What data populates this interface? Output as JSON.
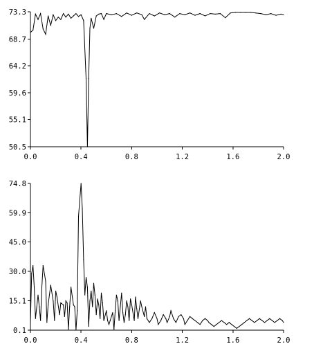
{
  "chart_data": [
    {
      "type": "line",
      "title": "",
      "xlabel": "",
      "ylabel": "",
      "xlim": [
        0.0,
        2.0
      ],
      "ylim": [
        50.5,
        73.3
      ],
      "grid": false,
      "xticks": [
        "0.0",
        "0.4",
        "0.8",
        "1.2",
        "1.6",
        "2.0"
      ],
      "yticks": [
        "73.3",
        "68.7",
        "64.2",
        "59.6",
        "55.1",
        "50.5"
      ],
      "series": [
        {
          "x": [
            0.0,
            0.02,
            0.04,
            0.06,
            0.08,
            0.1,
            0.12,
            0.14,
            0.16,
            0.18,
            0.2,
            0.22,
            0.24,
            0.26,
            0.28,
            0.3,
            0.32,
            0.34,
            0.36,
            0.38,
            0.4,
            0.42,
            0.44,
            0.45,
            0.46,
            0.47,
            0.48,
            0.5,
            0.52,
            0.54,
            0.56,
            0.58,
            0.6,
            0.64,
            0.68,
            0.72,
            0.76,
            0.8,
            0.84,
            0.88,
            0.9,
            0.94,
            0.98,
            1.02,
            1.06,
            1.1,
            1.14,
            1.18,
            1.22,
            1.26,
            1.3,
            1.34,
            1.38,
            1.42,
            1.46,
            1.5,
            1.54,
            1.58,
            1.62,
            1.66,
            1.7,
            1.74,
            1.78,
            1.82,
            1.86,
            1.9,
            1.94,
            1.98,
            2.0
          ],
          "values": [
            69.8,
            70.2,
            72.9,
            72.0,
            73.0,
            70.4,
            69.5,
            72.6,
            71.0,
            72.8,
            71.8,
            72.4,
            72.0,
            73.0,
            72.4,
            72.9,
            72.2,
            72.6,
            73.0,
            72.5,
            72.8,
            71.8,
            62.0,
            50.5,
            62.0,
            70.5,
            72.2,
            70.5,
            72.6,
            72.9,
            73.0,
            72.0,
            73.0,
            72.8,
            73.0,
            72.5,
            73.1,
            72.7,
            73.1,
            72.8,
            72.0,
            73.0,
            72.6,
            73.1,
            72.8,
            73.0,
            72.4,
            73.0,
            72.8,
            73.1,
            72.7,
            73.0,
            72.6,
            73.0,
            72.9,
            73.0,
            72.3,
            73.1,
            73.2,
            73.2,
            73.2,
            73.2,
            73.1,
            73.0,
            72.8,
            73.0,
            72.7,
            72.9,
            72.8
          ]
        }
      ]
    },
    {
      "type": "line",
      "title": "",
      "xlabel": "",
      "ylabel": "",
      "xlim": [
        0.0,
        2.0
      ],
      "ylim": [
        0.1,
        74.8
      ],
      "grid": false,
      "xticks": [
        "0.0",
        "0.4",
        "0.8",
        "1.2",
        "1.6",
        "2.0"
      ],
      "yticks": [
        "74.8",
        "59.9",
        "45.0",
        "30.0",
        "15.1",
        "0.1"
      ],
      "series": [
        {
          "x": [
            0.0,
            0.01,
            0.02,
            0.03,
            0.04,
            0.06,
            0.07,
            0.08,
            0.09,
            0.1,
            0.12,
            0.13,
            0.14,
            0.16,
            0.18,
            0.19,
            0.2,
            0.21,
            0.23,
            0.24,
            0.26,
            0.27,
            0.28,
            0.29,
            0.3,
            0.31,
            0.32,
            0.34,
            0.35,
            0.36,
            0.37,
            0.38,
            0.4,
            0.41,
            0.42,
            0.43,
            0.44,
            0.45,
            0.46,
            0.47,
            0.48,
            0.49,
            0.5,
            0.51,
            0.52,
            0.53,
            0.54,
            0.55,
            0.56,
            0.57,
            0.58,
            0.6,
            0.61,
            0.62,
            0.63,
            0.65,
            0.66,
            0.67,
            0.68,
            0.69,
            0.7,
            0.72,
            0.73,
            0.74,
            0.75,
            0.76,
            0.77,
            0.78,
            0.79,
            0.8,
            0.82,
            0.83,
            0.84,
            0.85,
            0.87,
            0.88,
            0.9,
            0.91,
            0.92,
            0.94,
            0.96,
            0.98,
            1.0,
            1.01,
            1.03,
            1.05,
            1.07,
            1.08,
            1.1,
            1.11,
            1.13,
            1.15,
            1.17,
            1.19,
            1.21,
            1.22,
            1.24,
            1.26,
            1.28,
            1.3,
            1.32,
            1.34,
            1.36,
            1.38,
            1.4,
            1.41,
            1.43,
            1.45,
            1.47,
            1.49,
            1.51,
            1.53,
            1.55,
            1.57,
            1.59,
            1.61,
            1.63,
            1.65,
            1.67,
            1.69,
            1.71,
            1.73,
            1.75,
            1.77,
            1.79,
            1.81,
            1.83,
            1.85,
            1.87,
            1.89,
            1.91,
            1.93,
            1.95,
            1.97,
            1.99,
            2.0
          ],
          "values": [
            4.0,
            29.0,
            33.0,
            22.0,
            6.0,
            18.0,
            12.0,
            5.0,
            22.0,
            33.0,
            25.0,
            4.0,
            13.0,
            23.0,
            15.0,
            5.0,
            20.0,
            17.0,
            8.0,
            14.0,
            13.0,
            7.0,
            15.0,
            14.0,
            0.5,
            12.0,
            22.0,
            13.0,
            12.0,
            0.1,
            10.0,
            58.0,
            74.8,
            62.0,
            36.0,
            18.0,
            27.0,
            22.0,
            2.0,
            15.0,
            20.0,
            12.0,
            24.0,
            18.0,
            8.0,
            16.0,
            13.0,
            6.0,
            19.0,
            14.0,
            5.0,
            10.0,
            5.0,
            3.0,
            5.0,
            9.0,
            0.5,
            10.0,
            18.0,
            15.0,
            5.0,
            19.0,
            9.0,
            4.0,
            8.0,
            15.0,
            12.0,
            5.0,
            16.0,
            13.0,
            5.0,
            17.0,
            11.0,
            6.0,
            15.0,
            12.0,
            7.0,
            12.0,
            6.0,
            4.0,
            6.0,
            9.0,
            6.0,
            3.0,
            5.0,
            8.0,
            6.0,
            4.0,
            7.0,
            10.0,
            6.0,
            4.0,
            7.0,
            8.0,
            6.0,
            3.0,
            5.0,
            7.0,
            6.0,
            5.0,
            4.0,
            3.0,
            5.0,
            6.0,
            5.0,
            4.0,
            3.0,
            2.0,
            3.0,
            4.0,
            5.0,
            4.0,
            3.0,
            4.0,
            3.0,
            2.0,
            1.0,
            2.0,
            3.0,
            4.0,
            5.0,
            6.0,
            5.0,
            4.0,
            5.0,
            6.0,
            5.0,
            4.0,
            5.0,
            6.0,
            5.0,
            4.0,
            5.0,
            6.0,
            5.0,
            4.0
          ]
        }
      ]
    }
  ]
}
